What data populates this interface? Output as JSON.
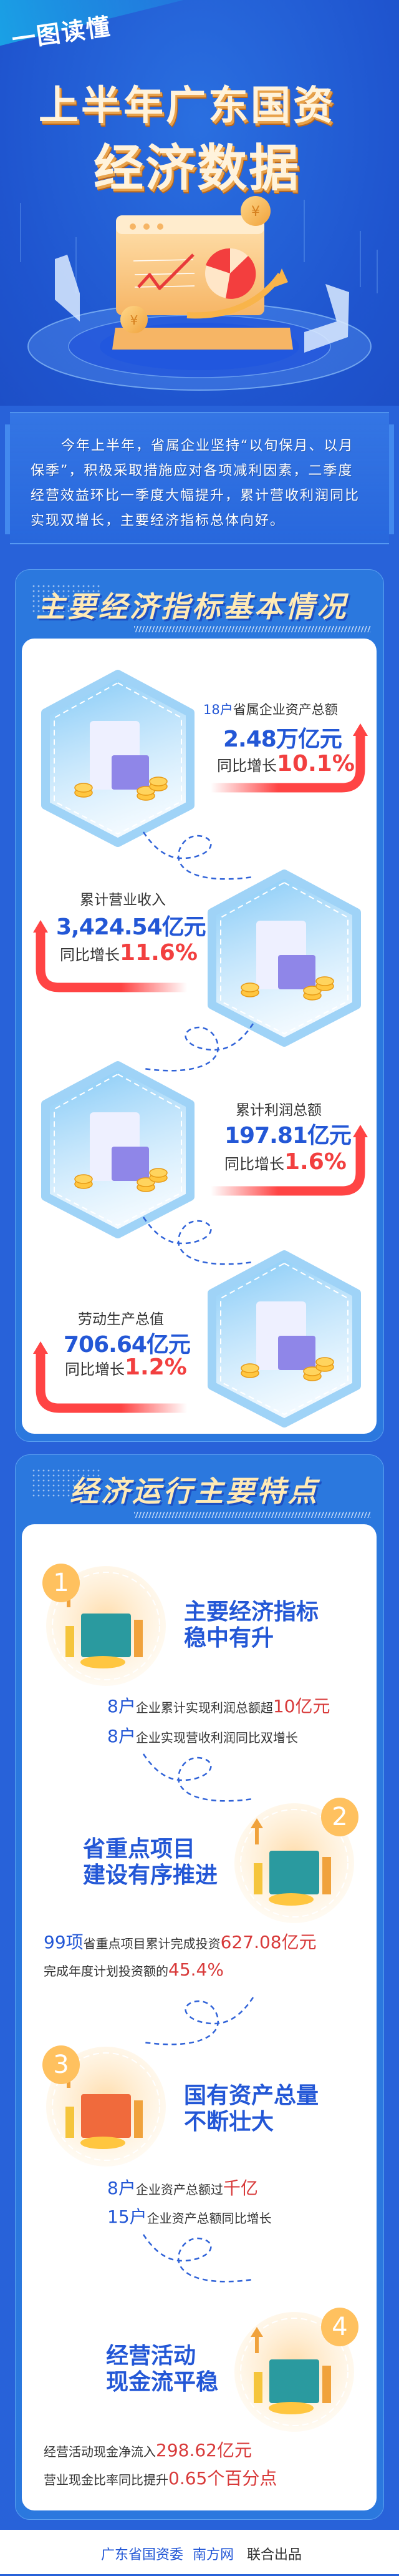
{
  "header": {
    "kicker": "一图读懂",
    "title_line1": "上半年广东国资",
    "title_line2": "经济数据"
  },
  "intro": {
    "lines": [
      "今年上半年，省属企业坚持“以旬保月、以月",
      "保季”，积极采取措施应对各项减利因素，二季度",
      "经营效益环比一季度大幅提升，累计营收利润同比",
      "实现双增长，主要经济指标总体向好。"
    ]
  },
  "section1": {
    "title": "主要经济指标基本情况",
    "items": [
      {
        "prefix": "18户",
        "label": "省属企业资产总额",
        "value": "2.48万亿元",
        "growth_label": "同比增长",
        "growth": "10.1%",
        "icon": "house-scale-illustration"
      },
      {
        "label": "累计营业收入",
        "value": "3,424.54亿元",
        "growth_label": "同比增长",
        "growth": "11.6%",
        "icon": "phone-payment-illustration"
      },
      {
        "label": "累计利润总额",
        "value": "197.81亿元",
        "growth_label": "同比增长",
        "growth": "1.6%",
        "icon": "money-card-illustration"
      },
      {
        "label": "劳动生产总值",
        "value": "706.64亿元",
        "growth_label": "同比增长",
        "growth": "1.2%",
        "icon": "chart-coins-illustration"
      }
    ]
  },
  "section2": {
    "title": "经济运行主要特点",
    "features": [
      {
        "num": "1",
        "head1": "主要经济指标",
        "head2": "稳中有升",
        "line1": {
          "a": "8户",
          "b": "企业累计实现利润总额超",
          "c": "10亿元"
        },
        "line2": {
          "a": "8户",
          "b": "企业实现营收利润同比双增长"
        }
      },
      {
        "num": "2",
        "head1": "省重点项目",
        "head2": "建设有序推进",
        "line1": {
          "a": "99项",
          "b": "省重点项目累计完成投资",
          "c": "627.08亿元"
        },
        "line2": {
          "b": "完成年度计划投资额的",
          "c": "45.4%"
        }
      },
      {
        "num": "3",
        "head1": "国有资产总量",
        "head2": "不断壮大",
        "line1": {
          "a": "8户",
          "b": "企业资产总额过",
          "c": "千亿"
        },
        "line2": {
          "a": "15户",
          "b": "企业资产总额同比增长"
        }
      },
      {
        "num": "4",
        "head1": "经营活动",
        "head2": "现金流平稳",
        "line1": {
          "b": "经营活动现金净流入",
          "c": "298.62亿元"
        },
        "line2": {
          "b": "营业现金比率同比提升",
          "c": "0.65个百分点"
        }
      }
    ]
  },
  "footer": {
    "org1": "广东省国资委",
    "org2": "南方网",
    "suffix": "联合出品"
  },
  "colors": {
    "background": "#2862d9",
    "panel": "#2b78de",
    "blue_text": "#2357d6",
    "red_text": "#f23f3f",
    "badge": "#ffc15f"
  }
}
